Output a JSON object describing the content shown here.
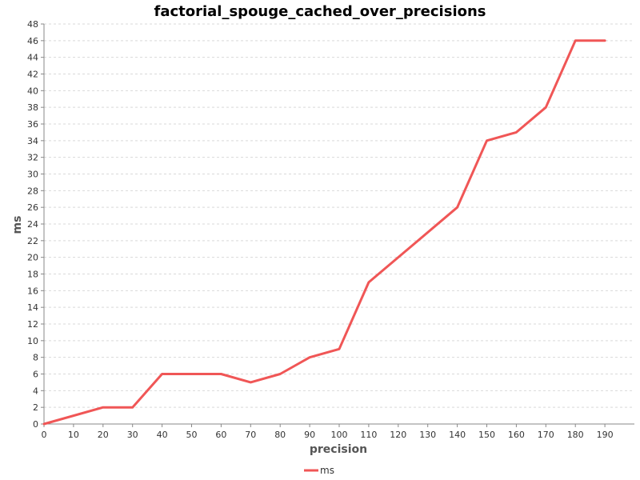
{
  "chart_data": {
    "type": "line",
    "title": "factorial_spouge_cached_over_precisions",
    "xlabel": "precision",
    "ylabel": "ms",
    "xlim": [
      0,
      200
    ],
    "ylim": [
      0,
      48
    ],
    "x_ticks": [
      0,
      10,
      20,
      30,
      40,
      50,
      60,
      70,
      80,
      90,
      100,
      110,
      120,
      130,
      140,
      150,
      160,
      170,
      180,
      190
    ],
    "y_ticks": [
      0,
      2,
      4,
      6,
      8,
      10,
      12,
      14,
      16,
      18,
      20,
      22,
      24,
      26,
      28,
      30,
      32,
      34,
      36,
      38,
      40,
      42,
      44,
      46,
      48
    ],
    "grid": true,
    "legend_position": "bottom",
    "series": [
      {
        "name": "ms",
        "color": "#f05656",
        "x": [
          0,
          20,
          30,
          40,
          50,
          60,
          70,
          80,
          90,
          100,
          110,
          140,
          150,
          160,
          170,
          180,
          190
        ],
        "y": [
          0,
          2,
          2,
          6,
          6,
          6,
          5,
          6,
          8,
          9,
          17,
          26,
          34,
          35,
          38,
          46,
          46
        ]
      }
    ]
  }
}
